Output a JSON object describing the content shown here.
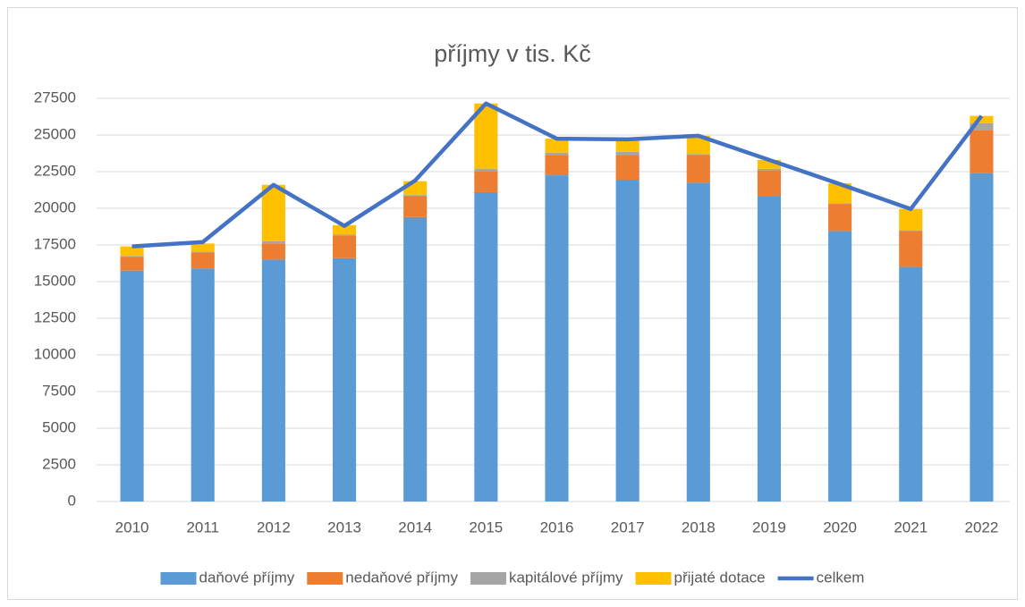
{
  "chart_data": {
    "type": "bar",
    "stacked": true,
    "title": "příjmy v tis. Kč",
    "categories": [
      "2010",
      "2011",
      "2012",
      "2013",
      "2014",
      "2015",
      "2016",
      "2017",
      "2018",
      "2019",
      "2020",
      "2021",
      "2022"
    ],
    "series": [
      {
        "name": "daňové příjmy",
        "color": "#5b9bd5",
        "values": [
          15750,
          15900,
          16500,
          16600,
          19400,
          21100,
          22250,
          21950,
          21750,
          20850,
          18450,
          16000,
          22400
        ]
      },
      {
        "name": "nedaňové příjmy",
        "color": "#ed7d31",
        "values": [
          950,
          1100,
          1100,
          1550,
          1450,
          1400,
          1400,
          1700,
          1900,
          1750,
          1850,
          2450,
          2950
        ]
      },
      {
        "name": "kapitálové příjmy",
        "color": "#a5a5a5",
        "values": [
          50,
          50,
          150,
          50,
          50,
          200,
          150,
          200,
          50,
          100,
          50,
          50,
          450
        ]
      },
      {
        "name": "přijaté dotace",
        "color": "#ffc000",
        "values": [
          650,
          550,
          3850,
          650,
          950,
          4450,
          950,
          850,
          1250,
          600,
          1350,
          1450,
          500
        ]
      },
      {
        "name": "celkem",
        "type": "line",
        "color": "#4472c4",
        "values": [
          17400,
          17700,
          21600,
          18800,
          21900,
          27150,
          24750,
          24700,
          24950,
          23300,
          21650,
          19950,
          26300
        ]
      }
    ],
    "ylim": [
      0,
      27500
    ],
    "yticks": [
      0,
      2500,
      5000,
      7500,
      10000,
      12500,
      15000,
      17500,
      20000,
      22500,
      25000,
      27500
    ],
    "grid": true,
    "legend": "bottom"
  }
}
